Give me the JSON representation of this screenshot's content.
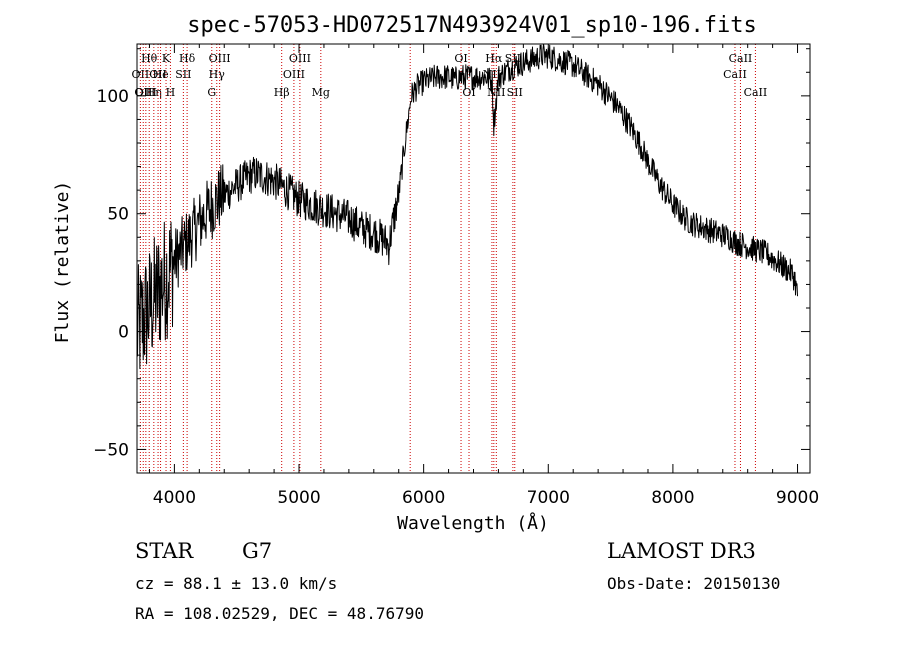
{
  "chart_data": {
    "type": "line",
    "title": "spec-57053-HD072517N493924V01_sp10-196.fits",
    "xlabel": "Wavelength (Å)",
    "ylabel": "Flux (relative)",
    "xlim": [
      3700,
      9100
    ],
    "ylim": [
      -60,
      122
    ],
    "xticks": [
      4000,
      5000,
      6000,
      7000,
      8000,
      9000
    ],
    "yticks": [
      -50,
      0,
      50,
      100
    ],
    "xtick_labels": [
      "4000",
      "5000",
      "6000",
      "7000",
      "8000",
      "9000"
    ],
    "ytick_labels": [
      "−50",
      "0",
      "50",
      "100"
    ],
    "line_color": "#000000",
    "marker_color": "#cc0000",
    "series": [
      {
        "name": "flux",
        "x": [
          3700,
          3750,
          3800,
          3850,
          3900,
          3950,
          4000,
          4050,
          4100,
          4150,
          4200,
          4250,
          4300,
          4350,
          4400,
          4450,
          4500,
          4550,
          4600,
          4650,
          4700,
          4750,
          4800,
          4850,
          4900,
          4950,
          5000,
          5050,
          5100,
          5150,
          5200,
          5250,
          5300,
          5350,
          5400,
          5450,
          5500,
          5550,
          5600,
          5650,
          5700,
          5720,
          5750,
          5800,
          5850,
          5900,
          5950,
          6000,
          6050,
          6100,
          6150,
          6200,
          6250,
          6300,
          6350,
          6400,
          6450,
          6500,
          6550,
          6563,
          6600,
          6650,
          6700,
          6750,
          6800,
          6850,
          6900,
          6950,
          7000,
          7050,
          7100,
          7150,
          7200,
          7250,
          7300,
          7350,
          7400,
          7450,
          7500,
          7550,
          7600,
          7650,
          7700,
          7750,
          7800,
          7850,
          7900,
          7950,
          8000,
          8050,
          8100,
          8150,
          8200,
          8250,
          8300,
          8350,
          8400,
          8450,
          8500,
          8550,
          8600,
          8650,
          8700,
          8750,
          8800,
          8850,
          8900,
          8950,
          8980,
          9000
        ],
        "y": [
          0,
          5,
          10,
          15,
          20,
          25,
          30,
          34,
          38,
          42,
          46,
          50,
          53,
          56,
          58,
          60,
          62,
          64,
          66,
          67,
          66,
          65,
          64,
          62,
          60,
          58,
          56,
          55,
          54,
          53,
          52,
          51,
          50,
          49,
          48,
          46,
          44,
          43,
          42,
          40,
          38,
          36,
          45,
          58,
          80,
          100,
          104,
          106,
          107,
          108,
          108,
          108,
          107,
          108,
          108,
          108,
          108,
          108,
          106,
          88,
          108,
          110,
          112,
          113,
          114,
          115,
          116,
          117,
          117,
          116,
          115,
          114,
          113,
          111,
          109,
          107,
          105,
          102,
          99,
          96,
          92,
          88,
          83,
          78,
          72,
          67,
          62,
          58,
          54,
          51,
          48,
          46,
          45,
          44,
          43,
          42,
          41,
          40,
          38,
          37,
          36,
          35,
          34,
          33,
          31,
          29,
          27,
          25,
          22,
          15
        ]
      }
    ],
    "line_markers": [
      {
        "wavelength": 3727,
        "label": "OII",
        "row": 2
      },
      {
        "wavelength": 3750,
        "label": "OII",
        "row": 3
      },
      {
        "wavelength": 3771,
        "label": "OIII",
        "row": 3
      },
      {
        "wavelength": 3798,
        "label": "Hθ",
        "row": 1
      },
      {
        "wavelength": 3835,
        "label": "Hη",
        "row": 3
      },
      {
        "wavelength": 3869,
        "label": "OII",
        "row": 2
      },
      {
        "wavelength": 3889,
        "label": "He",
        "row": 2
      },
      {
        "wavelength": 3933,
        "label": "K",
        "row": 1
      },
      {
        "wavelength": 3968,
        "label": "H",
        "row": 3
      },
      {
        "wavelength": 4072,
        "label": "SII",
        "row": 2
      },
      {
        "wavelength": 4102,
        "label": "Hδ",
        "row": 1
      },
      {
        "wavelength": 4300,
        "label": "G",
        "row": 3
      },
      {
        "wavelength": 4340,
        "label": "Hγ",
        "row": 2
      },
      {
        "wavelength": 4363,
        "label": "OIII",
        "row": 1
      },
      {
        "wavelength": 4861,
        "label": "Hβ",
        "row": 3
      },
      {
        "wavelength": 4959,
        "label": "OIII",
        "row": 2
      },
      {
        "wavelength": 5007,
        "label": "OIII",
        "row": 1
      },
      {
        "wavelength": 5175,
        "label": "Mg",
        "row": 3
      },
      {
        "wavelength": 5892,
        "label": "",
        "row": 0
      },
      {
        "wavelength": 6300,
        "label": "OI",
        "row": 1
      },
      {
        "wavelength": 6364,
        "label": "OI",
        "row": 3
      },
      {
        "wavelength": 6548,
        "label": "NII",
        "row": 2
      },
      {
        "wavelength": 6563,
        "label": "Hα",
        "row": 1
      },
      {
        "wavelength": 6583,
        "label": "NII",
        "row": 3
      },
      {
        "wavelength": 6716,
        "label": "SII",
        "row": 1
      },
      {
        "wavelength": 6731,
        "label": "SII",
        "row": 3
      },
      {
        "wavelength": 8498,
        "label": "CaII",
        "row": 2
      },
      {
        "wavelength": 8542,
        "label": "CaII",
        "row": 1
      },
      {
        "wavelength": 8662,
        "label": "CaII",
        "row": 3
      }
    ]
  },
  "info": {
    "class_label": "STAR",
    "subclass": "G7",
    "survey": "LAMOST DR3",
    "cz": "cz = 88.1 ± 13.0 km/s",
    "obs_date": "Obs-Date: 20150130",
    "radec": "RA = 108.02529, DEC =  48.76790"
  }
}
